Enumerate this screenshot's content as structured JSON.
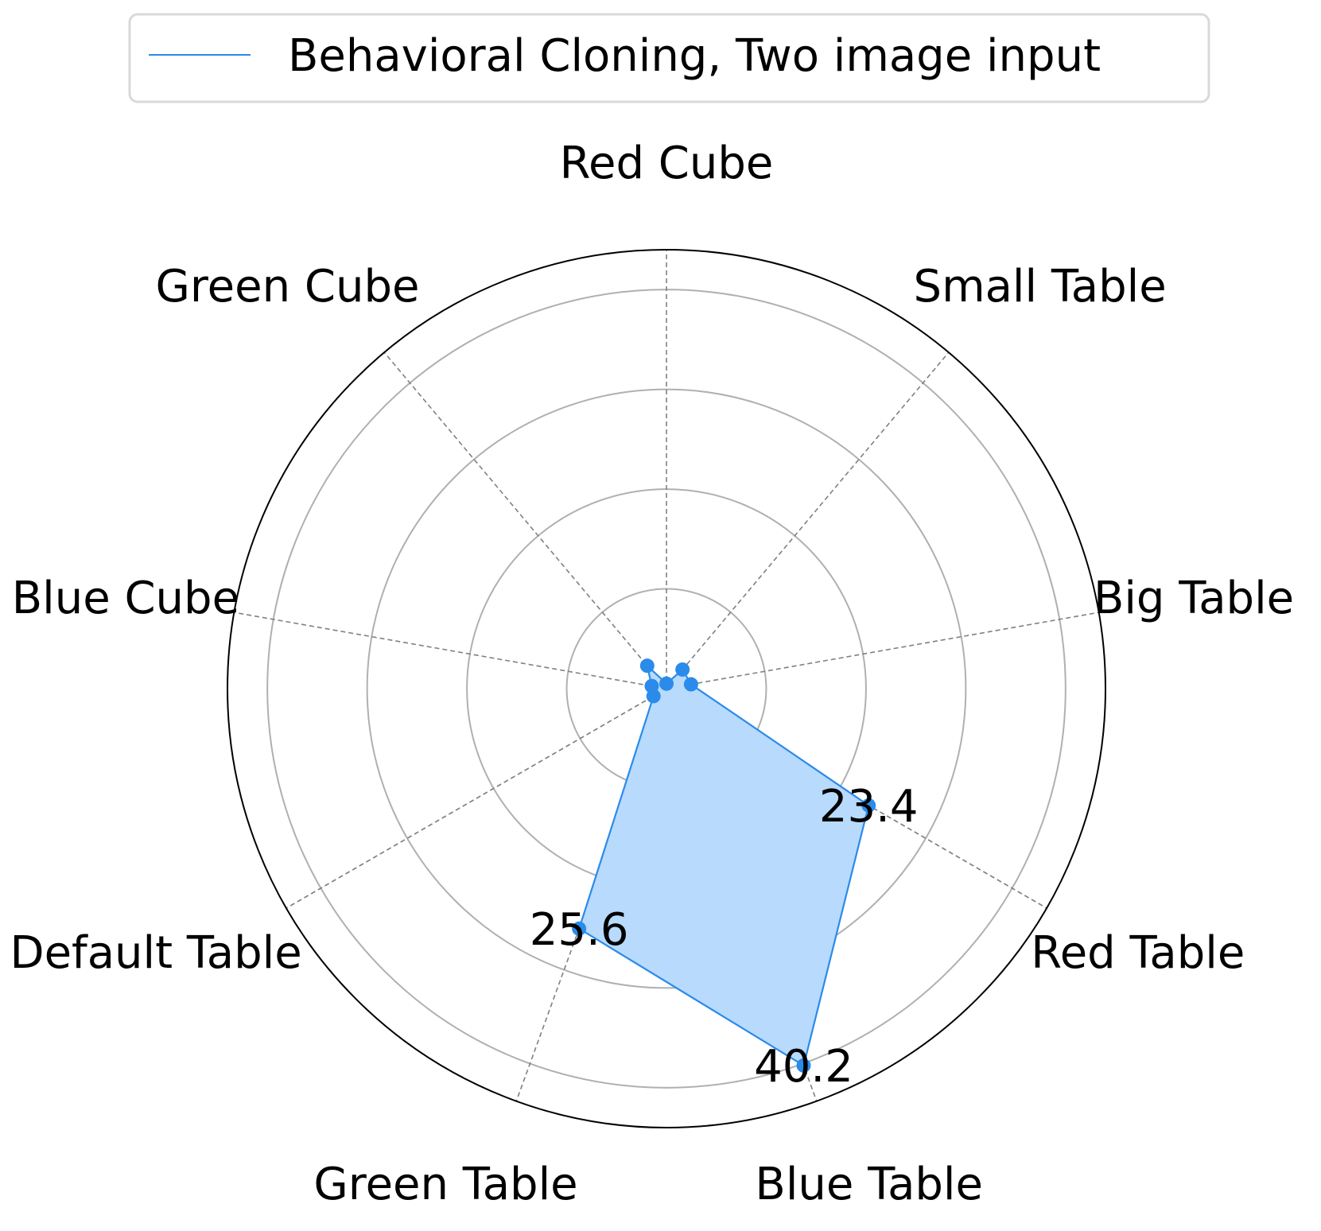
{
  "chart_data": {
    "type": "radar",
    "categories": [
      "Red Cube",
      "Small Table",
      "Big Table",
      "Red Table",
      "Blue Table",
      "Green Table",
      "Default Table",
      "Blue Cube",
      "Green Cube"
    ],
    "series": [
      {
        "name": "Behavioral Cloning, Two image input",
        "values": [
          0.5,
          2.5,
          2.5,
          23.4,
          40.2,
          25.6,
          1.5,
          1.5,
          3.0
        ],
        "color": "#2a8bea",
        "fill": "#b8dafd"
      }
    ],
    "annotations": [
      {
        "category": "Red Table",
        "text": "23.4"
      },
      {
        "category": "Blue Table",
        "text": "40.2"
      },
      {
        "category": "Green Table",
        "text": "25.6"
      }
    ],
    "rlim": [
      0,
      44
    ],
    "rgrid_values": [
      10,
      20,
      30,
      40
    ],
    "grid": true,
    "legend_position": "top-center"
  }
}
